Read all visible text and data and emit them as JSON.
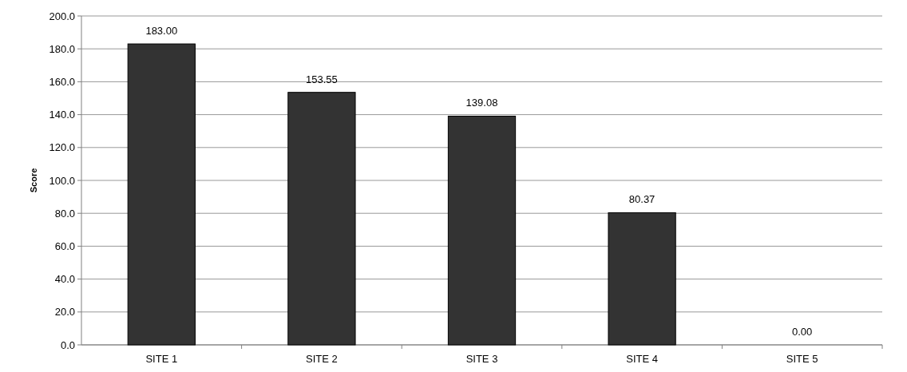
{
  "chart_data": {
    "type": "bar",
    "ylabel": "Score",
    "categories": [
      "SITE 1",
      "SITE 2",
      "SITE 3",
      "SITE 4",
      "SITE 5"
    ],
    "values": [
      183.0,
      153.55,
      139.08,
      80.37,
      0.0
    ],
    "value_labels": [
      "183.00",
      "153.55",
      "139.08",
      "80.37",
      "0.00"
    ],
    "color": "#333333",
    "ylim": [
      0,
      200
    ],
    "yticks": [
      {
        "value": 0,
        "label": "0.0"
      },
      {
        "value": 20,
        "label": "20.0"
      },
      {
        "value": 40,
        "label": "40.0"
      },
      {
        "value": 60,
        "label": "60.0"
      },
      {
        "value": 80,
        "label": "80.0"
      },
      {
        "value": 100,
        "label": "100.0"
      },
      {
        "value": 120,
        "label": "120.0"
      },
      {
        "value": 140,
        "label": "140.0"
      },
      {
        "value": 160,
        "label": "160.0"
      },
      {
        "value": 180,
        "label": "180.0"
      },
      {
        "value": 200,
        "label": "200.0"
      }
    ],
    "grid": "y"
  }
}
